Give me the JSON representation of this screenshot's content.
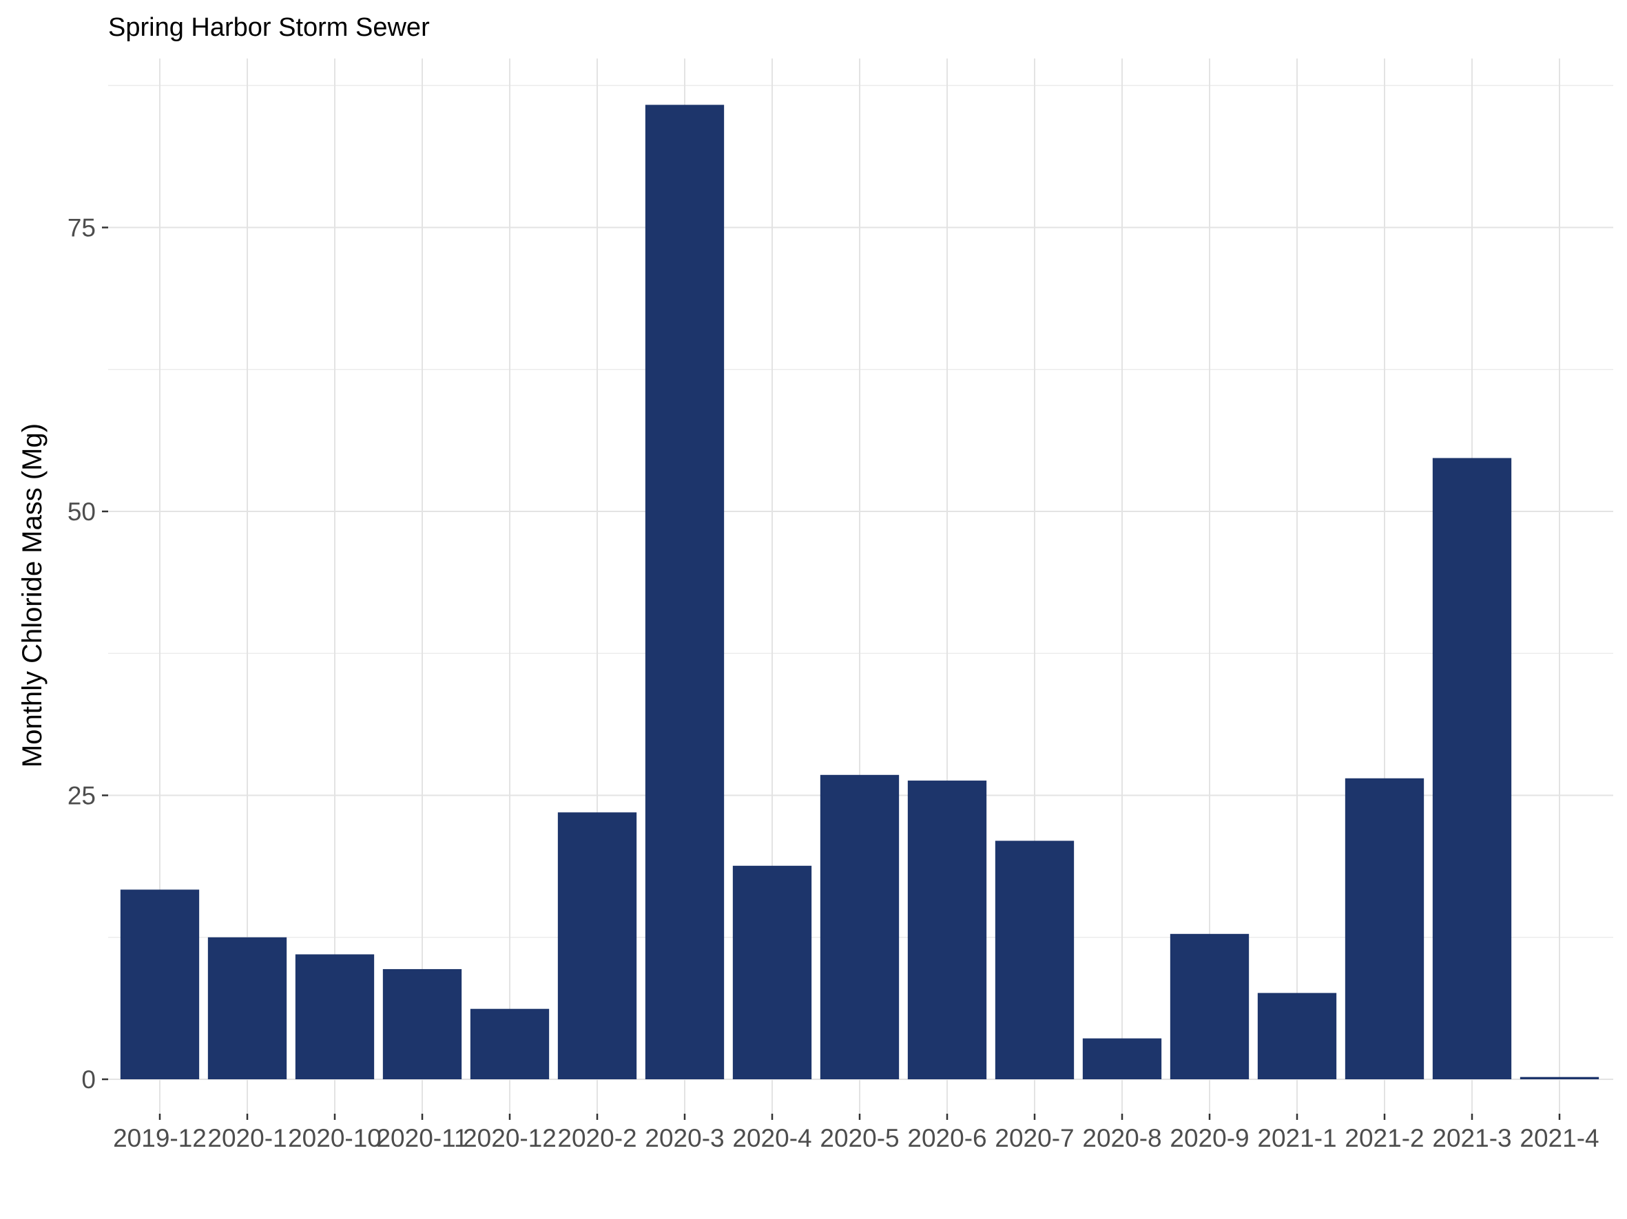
{
  "chart_data": {
    "type": "bar",
    "title": "Spring Harbor Storm Sewer",
    "xlabel": "",
    "ylabel": "Monthly Chloride Mass  (Mg)",
    "categories": [
      "2019-12",
      "2020-1",
      "2020-10",
      "2020-11",
      "2020-12",
      "2020-2",
      "2020-3",
      "2020-4",
      "2020-5",
      "2020-6",
      "2020-7",
      "2020-8",
      "2020-9",
      "2021-1",
      "2021-2",
      "2021-3",
      "2021-4"
    ],
    "values": [
      16.7,
      12.5,
      11.0,
      9.7,
      6.2,
      23.5,
      85.8,
      18.8,
      26.8,
      26.3,
      21.0,
      3.6,
      12.8,
      7.6,
      26.5,
      54.7,
      0.2
    ],
    "yticks": [
      0,
      25,
      50,
      75
    ],
    "yticklabels": [
      "0",
      "25",
      "50",
      "75"
    ],
    "ylim": [
      -4.3,
      90
    ],
    "grid": true,
    "legend": "none",
    "colors": {
      "bar": "#1d356b",
      "grid": "#e3e3e3",
      "tick_text": "#4d4d4d"
    }
  }
}
